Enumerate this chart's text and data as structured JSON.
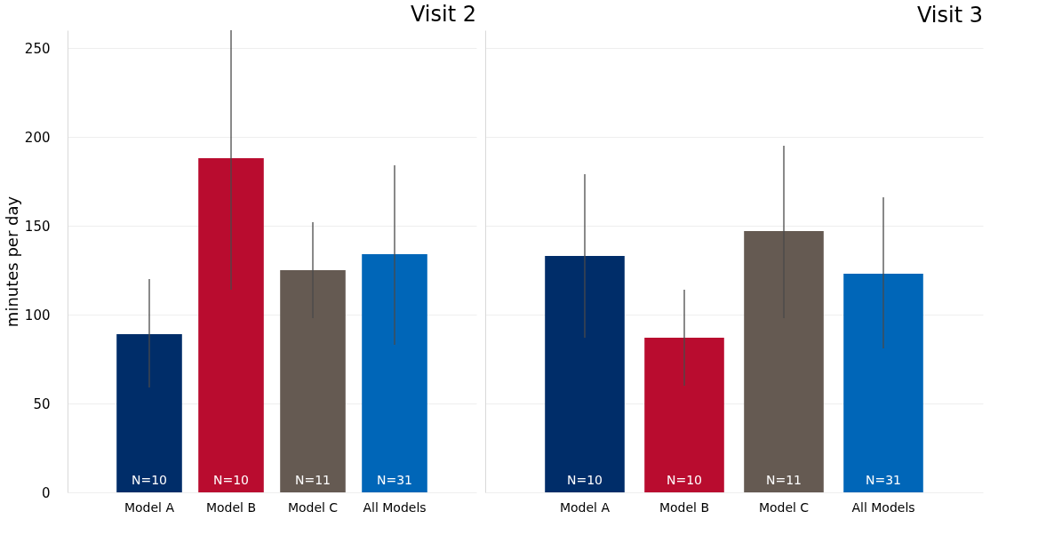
{
  "chart_data": [
    {
      "type": "bar",
      "title": "Visit 2",
      "ylabel": "minutes per day",
      "categories": [
        "Model A",
        "Model B",
        "Model C",
        "All Models"
      ],
      "values": [
        89,
        188,
        125,
        134
      ],
      "colors": [
        "#002d69",
        "#b90c2f",
        "#655a52",
        "#0066b8"
      ],
      "errors": [
        [
          59,
          120
        ],
        [
          114,
          260
        ],
        [
          98,
          152
        ],
        [
          83,
          184
        ]
      ],
      "ylim": [
        0,
        260
      ],
      "yticks": [
        0,
        50,
        100,
        150,
        200,
        250
      ],
      "grid": "y",
      "annotations": [
        {
          "text": "N=10",
          "x": "Model A",
          "y": 0
        },
        {
          "text": "N=10",
          "x": "Model B",
          "y": 0
        },
        {
          "text": "N=11",
          "x": "Model C",
          "y": 0
        },
        {
          "text": "N=31",
          "x": "All Models",
          "y": 0
        }
      ]
    },
    {
      "type": "bar",
      "title": "Visit 3",
      "categories": [
        "Model A",
        "Model B",
        "Model C",
        "All Models"
      ],
      "values": [
        133,
        87,
        147,
        123
      ],
      "colors": [
        "#002d69",
        "#b90c2f",
        "#655a52",
        "#0066b8"
      ],
      "errors": [
        [
          87,
          179
        ],
        [
          60,
          114
        ],
        [
          98,
          195
        ],
        [
          81,
          166
        ]
      ],
      "ylim": [
        0,
        260
      ],
      "yticks": [
        0,
        50,
        100,
        150,
        200,
        250
      ],
      "grid": "y",
      "tick_labels": "x",
      "annotations": [
        {
          "text": "N=10",
          "x": "Model A",
          "y": 0
        },
        {
          "text": "N=10",
          "x": "Model B",
          "y": 0
        },
        {
          "text": "N=11",
          "x": "Model C",
          "y": 0
        },
        {
          "text": "N=31",
          "x": "All Models",
          "y": 0
        }
      ]
    }
  ]
}
